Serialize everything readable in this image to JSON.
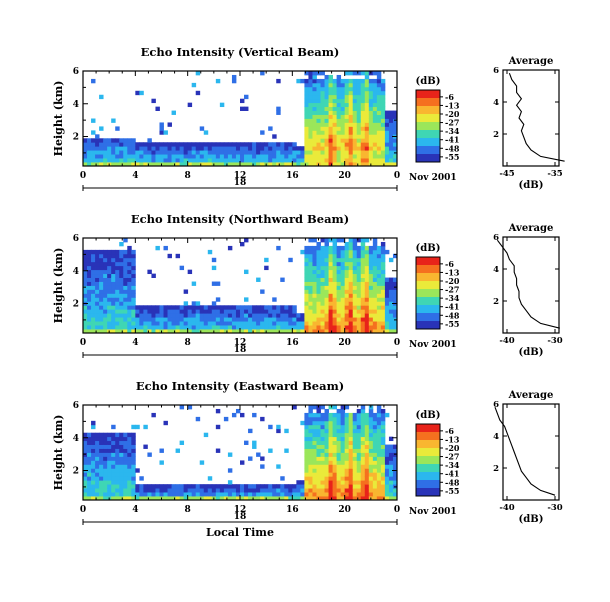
{
  "colorbar": {
    "unit_label": "(dB)",
    "tick_labels": [
      "-6",
      "-13",
      "-20",
      "-27",
      "-34",
      "-41",
      "-48",
      "-55"
    ],
    "colors": [
      "#e8231a",
      "#f5701f",
      "#f9b630",
      "#eaea3a",
      "#9be65a",
      "#3fd6b4",
      "#2bb7ee",
      "#2f6fe6",
      "#2933b8"
    ]
  },
  "chart_data": [
    {
      "type": "heatmap",
      "title": "Echo Intensity (Vertical Beam)",
      "ylabel": "Height (km)",
      "xlabel": "",
      "x_ticks": [
        "0",
        "4",
        "8",
        "12",
        "16",
        "20",
        "0"
      ],
      "y_ticks": [
        "6",
        "4",
        "2"
      ],
      "x_range_hours": [
        0,
        24
      ],
      "y_range_km": [
        0.2,
        6
      ],
      "date_day": "18",
      "date_label": "Nov 2001",
      "profile": {
        "title": "Average",
        "xlabel": "(dB)",
        "x_ticks": [
          "-45",
          "-35"
        ],
        "y_ticks": [
          "6",
          "4",
          "2"
        ],
        "height_km": [
          0.3,
          0.6,
          1.0,
          1.4,
          1.8,
          2.2,
          2.6,
          3.0,
          3.4,
          3.8,
          4.2,
          4.6,
          5.0,
          5.4,
          5.8
        ],
        "db": [
          -33,
          -38,
          -40,
          -41,
          -41.5,
          -42,
          -41.5,
          -42.5,
          -42,
          -43,
          -42,
          -43,
          -43,
          -44,
          -44.5
        ]
      }
    },
    {
      "type": "heatmap",
      "title": "Echo Intensity (Northward Beam)",
      "ylabel": "Height (km)",
      "xlabel": "",
      "x_ticks": [
        "0",
        "4",
        "8",
        "12",
        "16",
        "20",
        "0"
      ],
      "y_ticks": [
        "6",
        "4",
        "2"
      ],
      "x_range_hours": [
        0,
        24
      ],
      "y_range_km": [
        0.2,
        6
      ],
      "date_day": "18",
      "date_label": "Nov 2001",
      "profile": {
        "title": "Average",
        "xlabel": "(dB)",
        "x_ticks": [
          "-40",
          "-30"
        ],
        "y_ticks": [
          "6",
          "4",
          "2"
        ],
        "height_km": [
          0.3,
          0.6,
          1.0,
          1.4,
          1.8,
          2.2,
          2.6,
          3.0,
          3.4,
          3.8,
          4.2,
          4.6,
          5.0,
          5.4,
          5.8
        ],
        "db": [
          -29,
          -33,
          -35,
          -36,
          -37,
          -37.5,
          -37.5,
          -38,
          -38,
          -38.5,
          -38.5,
          -39.5,
          -40,
          -41,
          -42
        ]
      }
    },
    {
      "type": "heatmap",
      "title": "Echo Intensity (Eastward Beam)",
      "ylabel": "Height (km)",
      "xlabel": "Local Time",
      "x_ticks": [
        "0",
        "4",
        "8",
        "12",
        "16",
        "20",
        "0"
      ],
      "y_ticks": [
        "6",
        "4",
        "2"
      ],
      "x_range_hours": [
        0,
        24
      ],
      "y_range_km": [
        0.2,
        6
      ],
      "date_day": "18",
      "date_label": "Nov 2001",
      "profile": {
        "title": "Average",
        "xlabel": "(dB)",
        "x_ticks": [
          "-40",
          "-30"
        ],
        "y_ticks": [
          "6",
          "4",
          "2"
        ],
        "height_km": [
          0.3,
          0.6,
          1.0,
          1.4,
          1.8,
          2.2,
          2.6,
          3.0,
          3.4,
          3.8,
          4.2,
          4.6,
          5.0,
          5.4,
          5.8
        ],
        "db": [
          -30,
          -33,
          -35,
          -36,
          -37,
          -37.5,
          -38,
          -38.5,
          -39,
          -39.5,
          -40,
          -40.5,
          -41.5,
          -42,
          -42.5
        ]
      }
    }
  ]
}
